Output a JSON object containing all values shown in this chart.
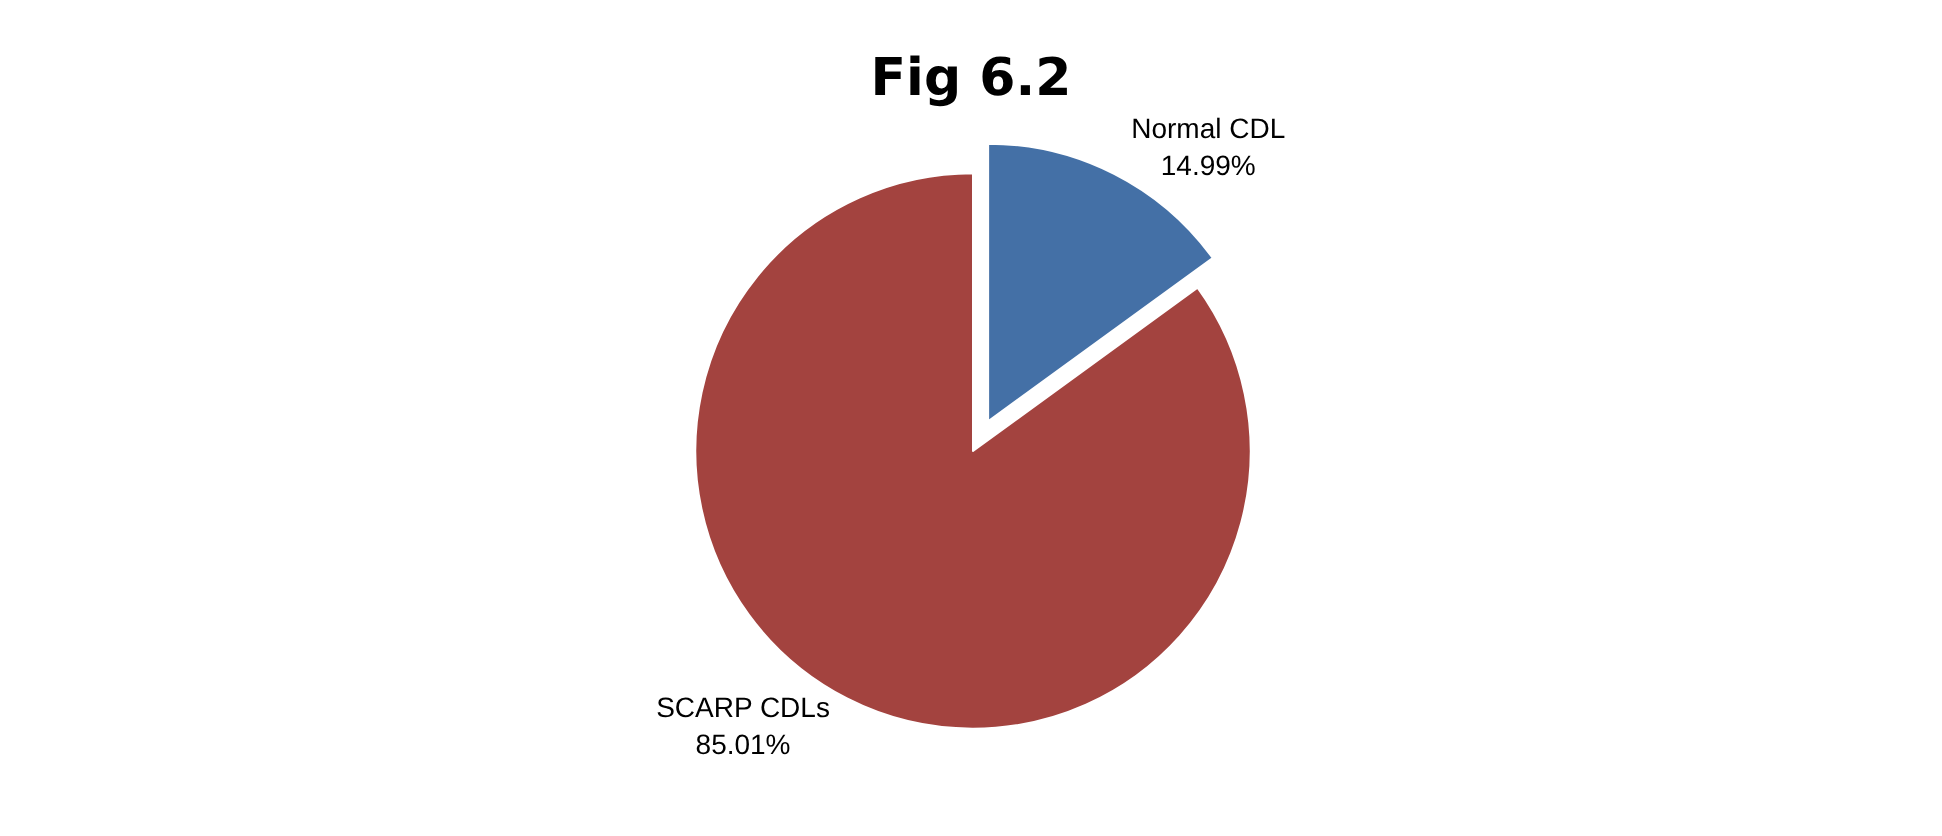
{
  "chart_data": {
    "type": "pie",
    "title": "Fig 6.2",
    "categories": [
      "Normal CDL",
      "SCARP CDLs"
    ],
    "values": [
      14.99,
      85.01
    ],
    "colors": [
      "#4470a6",
      "#a3433f"
    ],
    "value_labels": [
      "14.99%",
      "85.01%"
    ],
    "legend": false
  }
}
